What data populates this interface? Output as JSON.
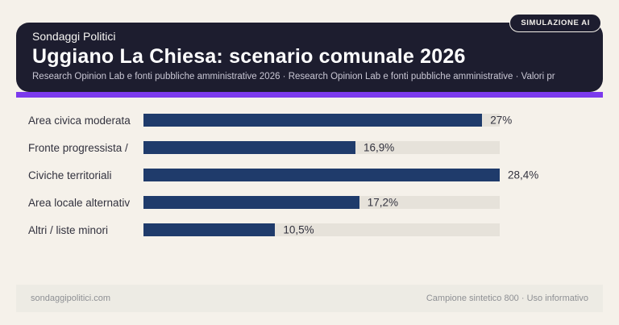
{
  "badge": {
    "label": "SIMULAZIONE AI"
  },
  "header": {
    "kicker": "Sondaggi Politici",
    "title": "Uggiano La Chiesa: scenario comunale 2026",
    "subtitle": "Research Opinion Lab e fonti pubbliche amministrative 2026 · Research Opinion Lab e fonti pubbliche amministrative · Valori pr"
  },
  "chart_data": {
    "type": "bar",
    "orientation": "horizontal",
    "title": "Uggiano La Chiesa: scenario comunale 2026",
    "categories": [
      "Area civica moderata",
      "Fronte progressista /",
      "Civiche territoriali",
      "Area locale alternativ",
      "Altri / liste minori"
    ],
    "values": [
      27,
      16.9,
      28.4,
      17.2,
      10.5
    ],
    "value_labels": [
      "27%",
      "16,9%",
      "28,4%",
      "17,2%",
      "10,5%"
    ],
    "unit": "%",
    "axis_max": 28.4,
    "legend": "none",
    "grid": "off",
    "bar_color": "#1f3b6b",
    "track_color": "#e6e2da"
  },
  "footer": {
    "left": "sondaggipolitici.com",
    "right": "Campione sintetico 800 · Uso informativo"
  },
  "colors": {
    "page_background": "#f5f1ea",
    "card_background": "#1d1d2f",
    "accent": "#7c3aed",
    "bar": "#1f3b6b",
    "track": "#e6e2da",
    "label_text": "#32323e",
    "subtitle_text": "#c9c7d4",
    "footer_text": "#8e9094"
  }
}
